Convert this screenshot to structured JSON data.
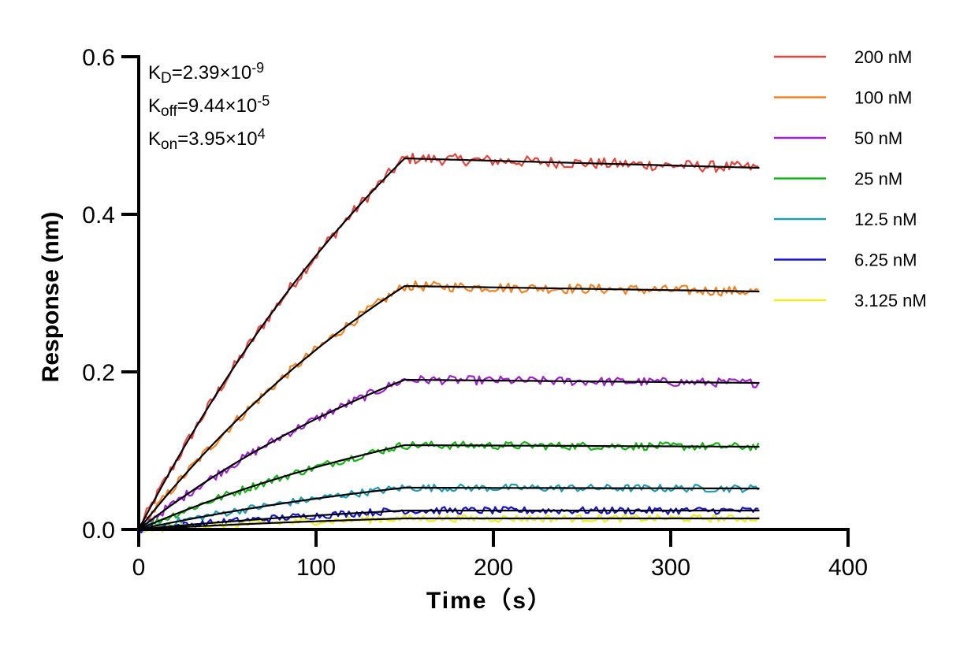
{
  "chart_data": {
    "type": "line",
    "xlabel": "Time（s）",
    "ylabel": "Response (nm)",
    "xlim": [
      0,
      400
    ],
    "ylim": [
      0,
      0.6
    ],
    "x_ticks": [
      "0",
      "100",
      "200",
      "300",
      "400"
    ],
    "y_ticks": [
      "0.0",
      "0.2",
      "0.4",
      "0.6"
    ],
    "grid": false,
    "legend_position": "right",
    "annotations": [
      {
        "name": "K",
        "sub": "D",
        "eq": "=2.39×10",
        "sup": "-9"
      },
      {
        "name": "K",
        "sub": "off",
        "eq": "=9.44×10",
        "sup": "-5"
      },
      {
        "name": "K",
        "sub": "on",
        "eq": "=3.95×10",
        "sup": "4"
      }
    ],
    "association_end": 150,
    "x_end": 350,
    "series": [
      {
        "name": "200 nM",
        "color": "#e8453c",
        "plateau": 0.471,
        "end": 0.459
      },
      {
        "name": "100 nM",
        "color": "#f5821f",
        "plateau": 0.309,
        "end": 0.302
      },
      {
        "name": "50 nM",
        "color": "#a21fd3",
        "plateau": 0.19,
        "end": 0.186
      },
      {
        "name": "25 nM",
        "color": "#12b712",
        "plateau": 0.107,
        "end": 0.105
      },
      {
        "name": "12.5 nM",
        "color": "#1e9fb3",
        "plateau": 0.053,
        "end": 0.052
      },
      {
        "name": "6.25 nM",
        "color": "#1414d8",
        "plateau": 0.024,
        "end": 0.024
      },
      {
        "name": "3.125 nM",
        "color": "#f2ee1a",
        "plateau": 0.014,
        "end": 0.014
      }
    ],
    "fit_color": "#000000"
  }
}
